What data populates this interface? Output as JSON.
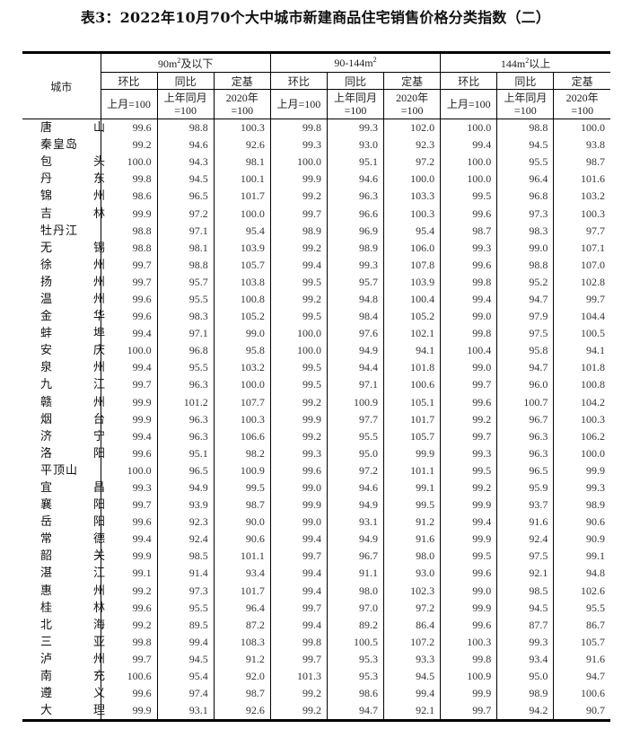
{
  "title": "表3：2022年10月70个大中城市新建商品住宅销售价格分类指数（二）",
  "header": {
    "city": "城市",
    "groups": [
      {
        "base": "90m",
        "sup": "2",
        "suffix": "及以下"
      },
      {
        "base": "90-144m",
        "sup": "2",
        "suffix": ""
      },
      {
        "base": "144m",
        "sup": "2",
        "suffix": "以上"
      }
    ],
    "subheaders": [
      "环比",
      "同比",
      "定基"
    ],
    "bases": [
      "上月=100",
      "上年同月 =100",
      "2020年 =100"
    ]
  },
  "rows": [
    [
      "唐山",
      "99.6",
      "98.8",
      "100.3",
      "99.8",
      "99.3",
      "102.0",
      "100.0",
      "98.8",
      "100.0"
    ],
    [
      "秦皇岛",
      "99.2",
      "94.6",
      "92.6",
      "99.3",
      "93.0",
      "92.3",
      "99.4",
      "94.5",
      "93.8"
    ],
    [
      "包头",
      "100.0",
      "94.3",
      "98.1",
      "100.0",
      "95.1",
      "97.2",
      "100.0",
      "95.5",
      "98.7"
    ],
    [
      "丹东",
      "99.8",
      "94.5",
      "100.1",
      "99.9",
      "94.6",
      "100.0",
      "100.0",
      "96.4",
      "101.6"
    ],
    [
      "锦州",
      "98.6",
      "96.5",
      "101.7",
      "99.2",
      "96.3",
      "103.3",
      "99.5",
      "96.8",
      "103.2"
    ],
    [
      "吉林",
      "99.9",
      "97.2",
      "100.0",
      "99.7",
      "96.6",
      "100.3",
      "99.6",
      "97.3",
      "100.3"
    ],
    [
      "牡丹江",
      "98.8",
      "97.1",
      "95.4",
      "98.9",
      "96.9",
      "95.4",
      "98.7",
      "98.3",
      "97.7"
    ],
    [
      "无锡",
      "98.8",
      "98.1",
      "103.9",
      "99.2",
      "98.9",
      "106.0",
      "99.3",
      "99.0",
      "107.1"
    ],
    [
      "徐州",
      "99.7",
      "98.8",
      "105.7",
      "99.4",
      "99.3",
      "107.8",
      "99.6",
      "98.8",
      "107.0"
    ],
    [
      "扬州",
      "99.7",
      "95.7",
      "103.8",
      "99.5",
      "95.7",
      "103.9",
      "99.8",
      "95.2",
      "102.8"
    ],
    [
      "温州",
      "99.6",
      "95.5",
      "100.8",
      "99.2",
      "94.8",
      "100.4",
      "99.4",
      "94.7",
      "99.7"
    ],
    [
      "金华",
      "99.6",
      "98.3",
      "105.2",
      "99.5",
      "98.4",
      "105.2",
      "99.0",
      "97.9",
      "104.4"
    ],
    [
      "蚌埠",
      "99.4",
      "97.1",
      "99.0",
      "100.0",
      "97.6",
      "102.1",
      "99.8",
      "97.5",
      "100.5"
    ],
    [
      "安庆",
      "100.0",
      "96.8",
      "95.8",
      "100.0",
      "94.9",
      "94.1",
      "100.4",
      "95.8",
      "94.1"
    ],
    [
      "泉州",
      "99.4",
      "95.5",
      "103.2",
      "99.5",
      "94.4",
      "101.8",
      "99.0",
      "94.7",
      "101.8"
    ],
    [
      "九江",
      "99.7",
      "96.3",
      "100.0",
      "99.5",
      "97.1",
      "100.6",
      "99.7",
      "96.0",
      "100.8"
    ],
    [
      "赣州",
      "99.9",
      "101.2",
      "107.7",
      "99.2",
      "100.9",
      "105.1",
      "99.6",
      "100.7",
      "104.2"
    ],
    [
      "烟台",
      "99.9",
      "96.3",
      "100.3",
      "99.9",
      "97.7",
      "101.7",
      "99.2",
      "96.7",
      "100.3"
    ],
    [
      "济宁",
      "99.4",
      "96.3",
      "106.6",
      "99.2",
      "95.5",
      "105.7",
      "99.7",
      "96.3",
      "106.2"
    ],
    [
      "洛阳",
      "99.6",
      "95.1",
      "98.2",
      "99.3",
      "95.0",
      "99.9",
      "99.3",
      "96.3",
      "100.0"
    ],
    [
      "平顶山",
      "100.0",
      "96.5",
      "100.9",
      "99.6",
      "97.2",
      "101.1",
      "99.5",
      "96.5",
      "99.9"
    ],
    [
      "宜昌",
      "99.3",
      "94.9",
      "99.5",
      "99.0",
      "94.6",
      "99.1",
      "99.2",
      "95.9",
      "99.3"
    ],
    [
      "襄阳",
      "99.7",
      "93.9",
      "98.7",
      "99.9",
      "94.9",
      "99.5",
      "99.9",
      "93.7",
      "98.9"
    ],
    [
      "岳阳",
      "99.6",
      "92.3",
      "90.0",
      "99.0",
      "93.1",
      "91.2",
      "99.4",
      "91.6",
      "90.6"
    ],
    [
      "常德",
      "99.4",
      "92.4",
      "90.6",
      "99.4",
      "94.9",
      "91.6",
      "99.9",
      "92.4",
      "90.9"
    ],
    [
      "韶关",
      "99.9",
      "98.5",
      "101.1",
      "99.7",
      "96.7",
      "98.0",
      "99.5",
      "97.5",
      "99.1"
    ],
    [
      "湛江",
      "99.1",
      "91.4",
      "93.4",
      "99.4",
      "91.1",
      "93.0",
      "99.6",
      "92.1",
      "94.8"
    ],
    [
      "惠州",
      "99.2",
      "97.3",
      "101.7",
      "99.4",
      "98.0",
      "102.3",
      "99.0",
      "98.5",
      "102.6"
    ],
    [
      "桂林",
      "99.6",
      "95.5",
      "96.4",
      "99.7",
      "97.0",
      "97.2",
      "99.9",
      "94.5",
      "95.5"
    ],
    [
      "北海",
      "99.2",
      "89.5",
      "87.2",
      "99.4",
      "89.2",
      "86.4",
      "99.6",
      "87.7",
      "86.7"
    ],
    [
      "三亚",
      "99.8",
      "99.4",
      "108.3",
      "99.8",
      "100.5",
      "107.2",
      "100.3",
      "99.3",
      "105.7"
    ],
    [
      "泸州",
      "99.7",
      "94.5",
      "91.2",
      "99.7",
      "95.3",
      "93.3",
      "99.8",
      "93.4",
      "91.6"
    ],
    [
      "南充",
      "100.6",
      "95.4",
      "92.0",
      "101.3",
      "95.3",
      "94.5",
      "100.9",
      "95.0",
      "94.7"
    ],
    [
      "遵义",
      "99.6",
      "97.4",
      "98.7",
      "99.2",
      "98.6",
      "99.4",
      "99.9",
      "98.9",
      "100.6"
    ],
    [
      "大理",
      "99.9",
      "93.1",
      "92.6",
      "99.2",
      "94.7",
      "92.1",
      "99.7",
      "94.2",
      "90.7"
    ]
  ]
}
